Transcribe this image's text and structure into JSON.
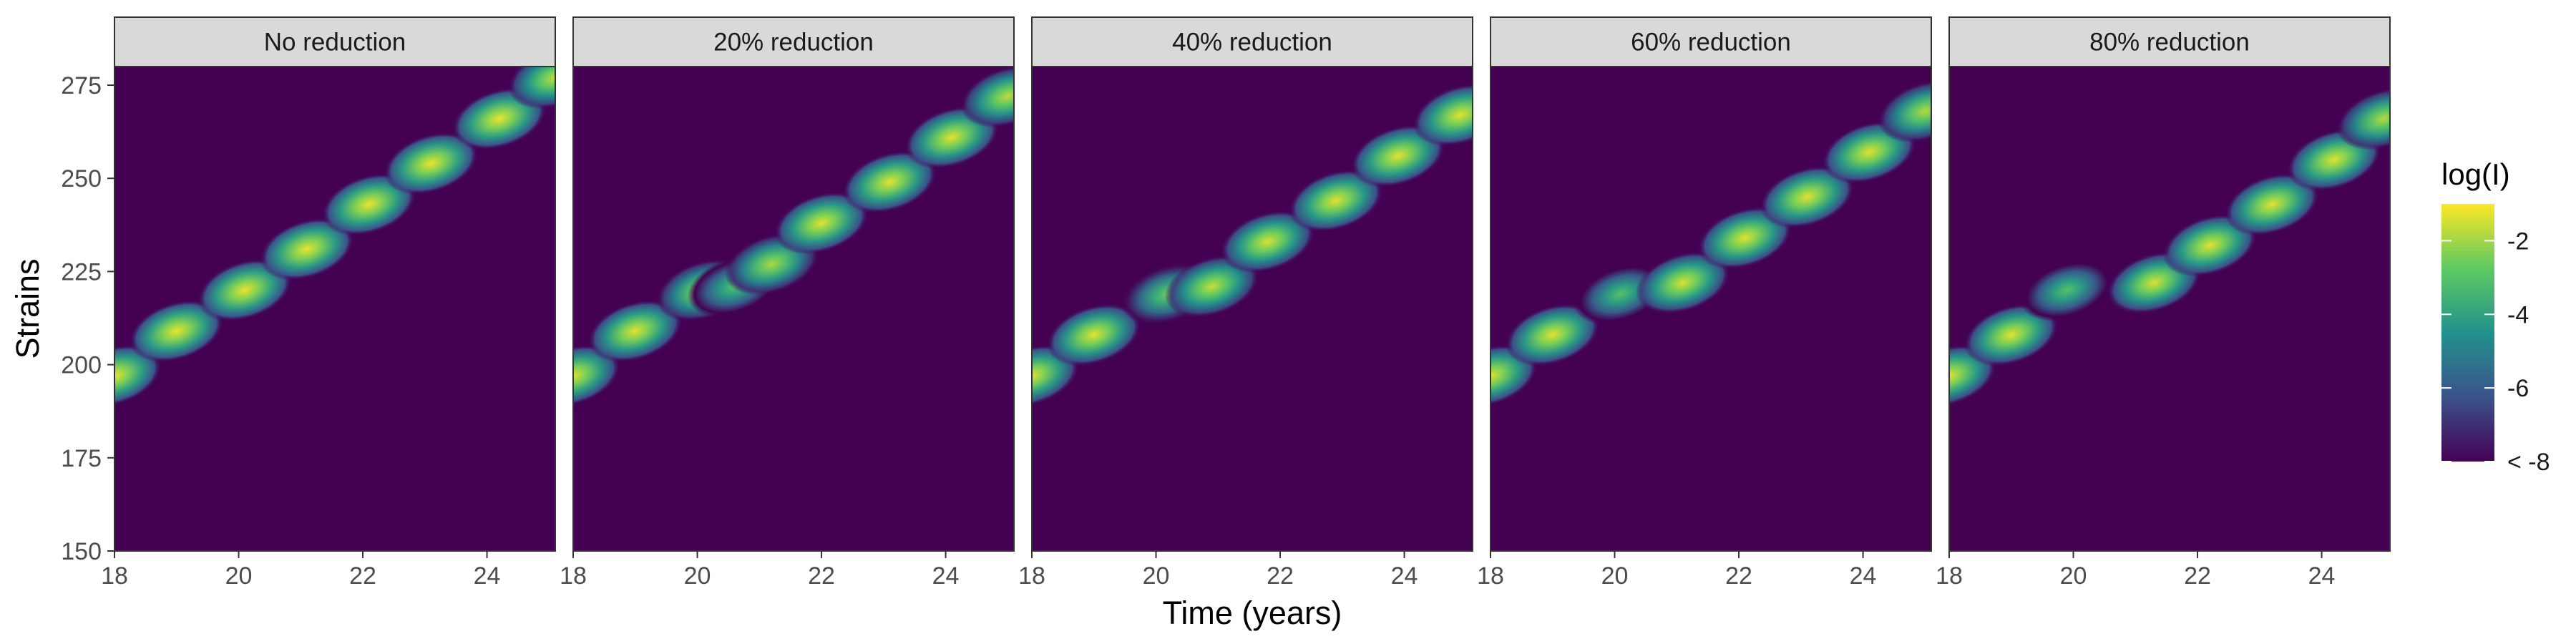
{
  "chart_data": {
    "type": "heatmap",
    "xlabel": "Time (years)",
    "ylabel": "Strains",
    "xlim": [
      18,
      25.1
    ],
    "ylim": [
      150,
      280
    ],
    "x_ticks": [
      18,
      20,
      22,
      24
    ],
    "y_ticks": [
      150,
      175,
      200,
      225,
      250,
      275
    ],
    "x_tick_labels": [
      "18",
      "20",
      "22",
      "24"
    ],
    "y_tick_labels": [
      "150",
      "175",
      "200",
      "225",
      "250",
      "275"
    ],
    "background_color": "#440154",
    "color_scale": {
      "title": "log(I)",
      "palette": "viridis",
      "colors": [
        "#440154",
        "#3b528b",
        "#21918c",
        "#5ec962",
        "#fde725"
      ],
      "range": [
        -8,
        -1
      ],
      "breaks": [
        -2,
        -4,
        -6,
        -8
      ],
      "labels": [
        "-2",
        "-4",
        "-6",
        "< -8"
      ]
    },
    "panels": [
      {
        "label": "No reduction",
        "peaks": [
          {
            "x": 18.0,
            "y": 197,
            "v": -1.2
          },
          {
            "x": 19.0,
            "y": 209,
            "v": -1.2
          },
          {
            "x": 20.1,
            "y": 220,
            "v": -1.2
          },
          {
            "x": 21.1,
            "y": 231,
            "v": -1.2
          },
          {
            "x": 22.1,
            "y": 243,
            "v": -1.2
          },
          {
            "x": 23.1,
            "y": 254,
            "v": -1.2
          },
          {
            "x": 24.2,
            "y": 266,
            "v": -1.2
          },
          {
            "x": 25.1,
            "y": 277,
            "v": -1.6
          }
        ]
      },
      {
        "label": "20% reduction",
        "peaks": [
          {
            "x": 18.0,
            "y": 197,
            "v": -1.3
          },
          {
            "x": 19.0,
            "y": 209,
            "v": -1.3
          },
          {
            "x": 20.1,
            "y": 220,
            "v": -1.8
          },
          {
            "x": 20.6,
            "y": 221,
            "v": -3.0
          },
          {
            "x": 21.2,
            "y": 227,
            "v": -1.9
          },
          {
            "x": 22.0,
            "y": 238,
            "v": -1.3
          },
          {
            "x": 23.1,
            "y": 249,
            "v": -1.3
          },
          {
            "x": 24.1,
            "y": 261,
            "v": -1.3
          },
          {
            "x": 25.0,
            "y": 272,
            "v": -1.7
          }
        ]
      },
      {
        "label": "40% reduction",
        "peaks": [
          {
            "x": 18.0,
            "y": 197,
            "v": -1.3
          },
          {
            "x": 19.0,
            "y": 208,
            "v": -1.3
          },
          {
            "x": 20.2,
            "y": 219,
            "v": -2.6
          },
          {
            "x": 20.9,
            "y": 221,
            "v": -1.6
          },
          {
            "x": 21.8,
            "y": 233,
            "v": -1.4
          },
          {
            "x": 22.9,
            "y": 244,
            "v": -1.3
          },
          {
            "x": 23.9,
            "y": 256,
            "v": -1.3
          },
          {
            "x": 24.9,
            "y": 267,
            "v": -1.3
          }
        ]
      },
      {
        "label": "60% reduction",
        "peaks": [
          {
            "x": 18.0,
            "y": 197,
            "v": -1.3
          },
          {
            "x": 19.0,
            "y": 208,
            "v": -1.3
          },
          {
            "x": 20.1,
            "y": 219,
            "v": -3.0
          },
          {
            "x": 21.1,
            "y": 222,
            "v": -1.4
          },
          {
            "x": 22.1,
            "y": 234,
            "v": -1.3
          },
          {
            "x": 23.1,
            "y": 245,
            "v": -1.3
          },
          {
            "x": 24.1,
            "y": 257,
            "v": -1.3
          },
          {
            "x": 25.0,
            "y": 268,
            "v": -1.8
          }
        ]
      },
      {
        "label": "80% reduction",
        "peaks": [
          {
            "x": 18.0,
            "y": 197,
            "v": -1.3
          },
          {
            "x": 19.0,
            "y": 208,
            "v": -1.3
          },
          {
            "x": 19.9,
            "y": 220,
            "v": -3.0
          },
          {
            "x": 21.3,
            "y": 222,
            "v": -1.4
          },
          {
            "x": 22.2,
            "y": 232,
            "v": -1.3
          },
          {
            "x": 23.2,
            "y": 243,
            "v": -1.3
          },
          {
            "x": 24.2,
            "y": 255,
            "v": -1.3
          },
          {
            "x": 25.0,
            "y": 266,
            "v": -1.8
          }
        ]
      }
    ]
  }
}
